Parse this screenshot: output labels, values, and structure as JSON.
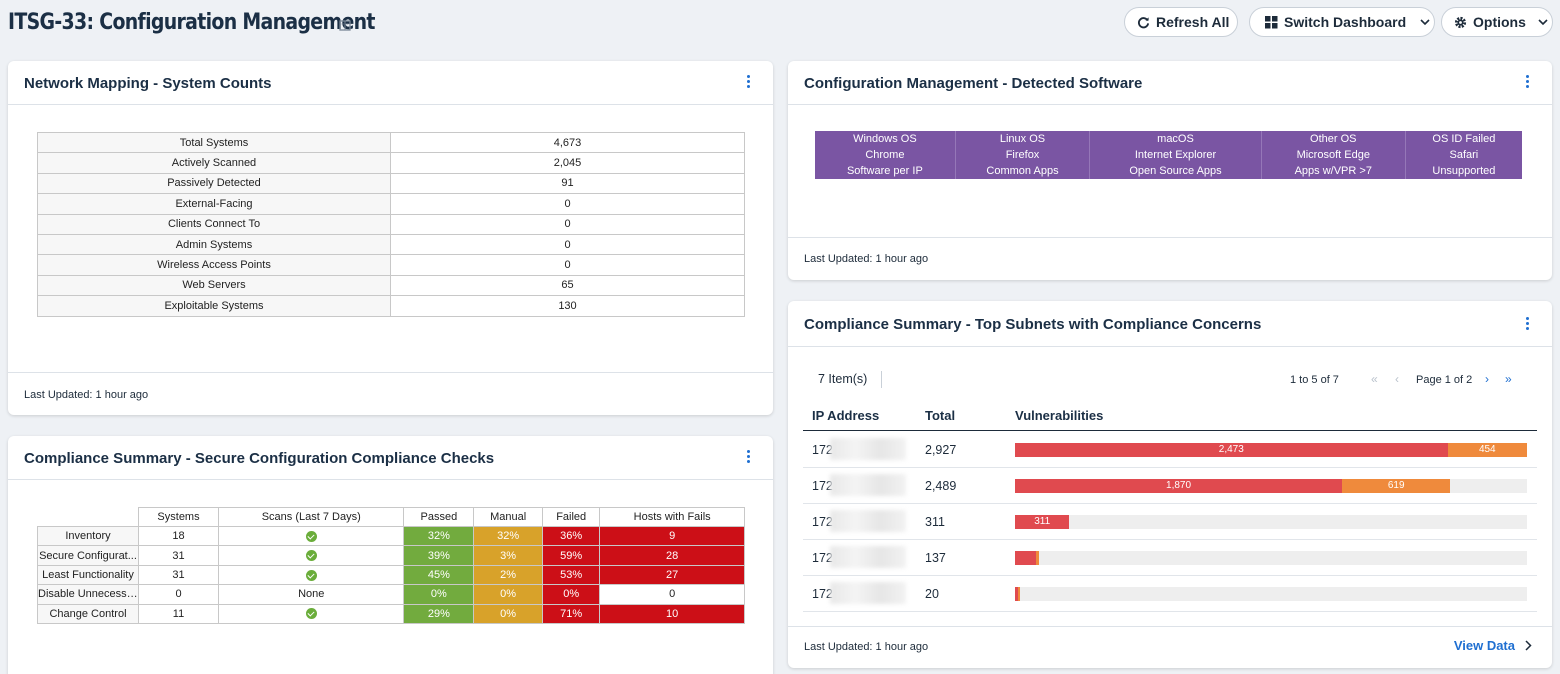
{
  "header": {
    "title": "ITSG-33: Configuration Management",
    "buttons": {
      "refresh": "Refresh All",
      "switch": "Switch Dashboard",
      "options": "Options"
    }
  },
  "network_mapping": {
    "title": "Network Mapping - System Counts",
    "rows": [
      {
        "label": "Total Systems",
        "value": "4,673"
      },
      {
        "label": "Actively Scanned",
        "value": "2,045"
      },
      {
        "label": "Passively Detected",
        "value": "91"
      },
      {
        "label": "External-Facing",
        "value": "0"
      },
      {
        "label": "Clients Connect To",
        "value": "0"
      },
      {
        "label": "Admin Systems",
        "value": "0"
      },
      {
        "label": "Wireless Access Points",
        "value": "0"
      },
      {
        "label": "Web Servers",
        "value": "65"
      },
      {
        "label": "Exploitable Systems",
        "value": "130"
      }
    ],
    "updated": "Last Updated: 1 hour ago"
  },
  "detected_software": {
    "title": "Configuration Management - Detected Software",
    "rows": [
      [
        "Windows OS",
        "Linux OS",
        "macOS",
        "Other OS",
        "OS ID Failed"
      ],
      [
        "Chrome",
        "Firefox",
        "Internet Explorer",
        "Microsoft Edge",
        "Safari"
      ],
      [
        "Software per IP",
        "Common Apps",
        "Open Source Apps",
        "Apps w/VPR >7",
        "Unsupported"
      ]
    ],
    "updated": "Last Updated: 1 hour ago"
  },
  "compliance_checks": {
    "title": "Compliance Summary - Secure Configuration Compliance Checks",
    "headers": [
      "Systems",
      "Scans (Last 7 Days)",
      "Passed",
      "Manual",
      "Failed",
      "Hosts with Fails"
    ],
    "rows": [
      {
        "label": "Inventory",
        "systems": "18",
        "scans": "",
        "passed": "32%",
        "manual": "32%",
        "failed": "36%",
        "hosts": "9"
      },
      {
        "label": "Secure Configurat...",
        "systems": "31",
        "scans": "",
        "passed": "39%",
        "manual": "3%",
        "failed": "59%",
        "hosts": "28"
      },
      {
        "label": "Least Functionality",
        "systems": "31",
        "scans": "",
        "passed": "45%",
        "manual": "2%",
        "failed": "53%",
        "hosts": "27"
      },
      {
        "label": "Disable Unnecessary",
        "systems": "0",
        "scans": "None",
        "passed": "0%",
        "manual": "0%",
        "failed": "0%",
        "hosts": "0"
      },
      {
        "label": "Change Control",
        "systems": "11",
        "scans": "",
        "passed": "29%",
        "manual": "0%",
        "failed": "71%",
        "hosts": "10"
      }
    ],
    "colors": {
      "passed": "#72ab3e",
      "manual": "#d8a22a",
      "failed": "#cc0f17"
    }
  },
  "subnets": {
    "title": "Compliance Summary - Top Subnets with Compliance Concerns",
    "count": "7 Item(s)",
    "pager_range": "1 to 5 of 7",
    "pager_page": "Page 1 of 2",
    "columns": [
      "IP Address",
      "Total",
      "Vulnerabilities"
    ],
    "max_total": 2927,
    "rows": [
      {
        "ip": "172",
        "total": "2,927",
        "critical": 2473,
        "high": 454,
        "critical_label": "2,473",
        "high_label": "454"
      },
      {
        "ip": "172",
        "total": "2,489",
        "critical": 1870,
        "high": 619,
        "critical_label": "1,870",
        "high_label": "619"
      },
      {
        "ip": "172",
        "total": "311",
        "critical": 311,
        "high": 0,
        "critical_label": "311",
        "high_label": ""
      },
      {
        "ip": "172",
        "total": "137",
        "critical": 120,
        "high": 17,
        "critical_label": "",
        "high_label": ""
      },
      {
        "ip": "172",
        "total": "20",
        "critical": 15,
        "high": 5,
        "critical_label": "",
        "high_label": ""
      }
    ],
    "colors": {
      "critical": "#e04a4f",
      "high": "#ef8a3c"
    },
    "updated": "Last Updated: 1 hour ago",
    "view_data": "View Data"
  }
}
